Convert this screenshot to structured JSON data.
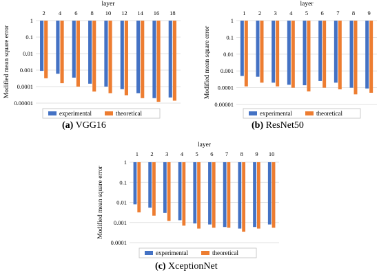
{
  "colors": {
    "experimental": "#4472C4",
    "theoretical": "#ED7D31"
  },
  "chart_data": [
    {
      "id": "vgg16",
      "type": "bar",
      "caption_label": "(a)",
      "caption_text": "VGG16",
      "xlabel": "layer",
      "ylabel": "Modified mean square error",
      "yscale": "log",
      "ylim": [
        1e-05,
        1
      ],
      "yticks": [
        "1",
        "0.1",
        "0.01",
        "0.001",
        "0.0001",
        "0.00001"
      ],
      "categories": [
        "2",
        "4",
        "6",
        "8",
        "10",
        "12",
        "14",
        "16",
        "18"
      ],
      "legend_position": "bottom",
      "series": [
        {
          "name": "experimental",
          "values": [
            0.0009,
            0.0006,
            0.00035,
            0.00015,
            0.0001,
            7e-05,
            4e-05,
            2e-05,
            2.2e-05
          ]
        },
        {
          "name": "theoretical",
          "values": [
            0.00032,
            0.00016,
            0.0001,
            5e-05,
            4e-05,
            3e-05,
            2e-05,
            1.2e-05,
            1.4e-05
          ]
        }
      ]
    },
    {
      "id": "resnet50",
      "type": "bar",
      "caption_label": "(b)",
      "caption_text": "ResNet50",
      "xlabel": "layer",
      "ylabel": "Modified mean square error",
      "yscale": "log",
      "ylim": [
        1e-05,
        1
      ],
      "yticks": [
        "1",
        "0.1",
        "0.01",
        "0.001",
        "0.0001",
        "0.00001"
      ],
      "categories": [
        "1",
        "2",
        "3",
        "4",
        "5",
        "6",
        "7",
        "8",
        "9"
      ],
      "legend_position": "bottom",
      "series": [
        {
          "name": "experimental",
          "values": [
            0.0005,
            0.00045,
            0.0002,
            0.00015,
            0.00014,
            0.00025,
            0.0002,
            0.0001,
            9e-05
          ]
        },
        {
          "name": "theoretical",
          "values": [
            0.00012,
            0.0002,
            0.00012,
            0.0001,
            6e-05,
            0.0001,
            8e-05,
            4e-05,
            5e-05
          ]
        }
      ]
    },
    {
      "id": "xceptionnet",
      "type": "bar",
      "caption_label": "(c)",
      "caption_text": "XceptionNet",
      "xlabel": "layer",
      "ylabel": "Modified mean square error",
      "yscale": "log",
      "ylim": [
        0.0001,
        1
      ],
      "yticks": [
        "1",
        "0.1",
        "0.01",
        "0.001",
        "0.0001"
      ],
      "categories": [
        "1",
        "2",
        "3",
        "4",
        "5",
        "6",
        "7",
        "8",
        "9",
        "10"
      ],
      "legend_position": "bottom",
      "series": [
        {
          "name": "experimental",
          "values": [
            0.008,
            0.0055,
            0.003,
            0.0013,
            0.0009,
            0.0008,
            0.0006,
            0.0005,
            0.0006,
            0.0008
          ]
        },
        {
          "name": "theoretical",
          "values": [
            0.0032,
            0.0022,
            0.0012,
            0.0007,
            0.0005,
            0.00055,
            0.00055,
            0.00035,
            0.0005,
            0.00055
          ]
        }
      ]
    }
  ]
}
